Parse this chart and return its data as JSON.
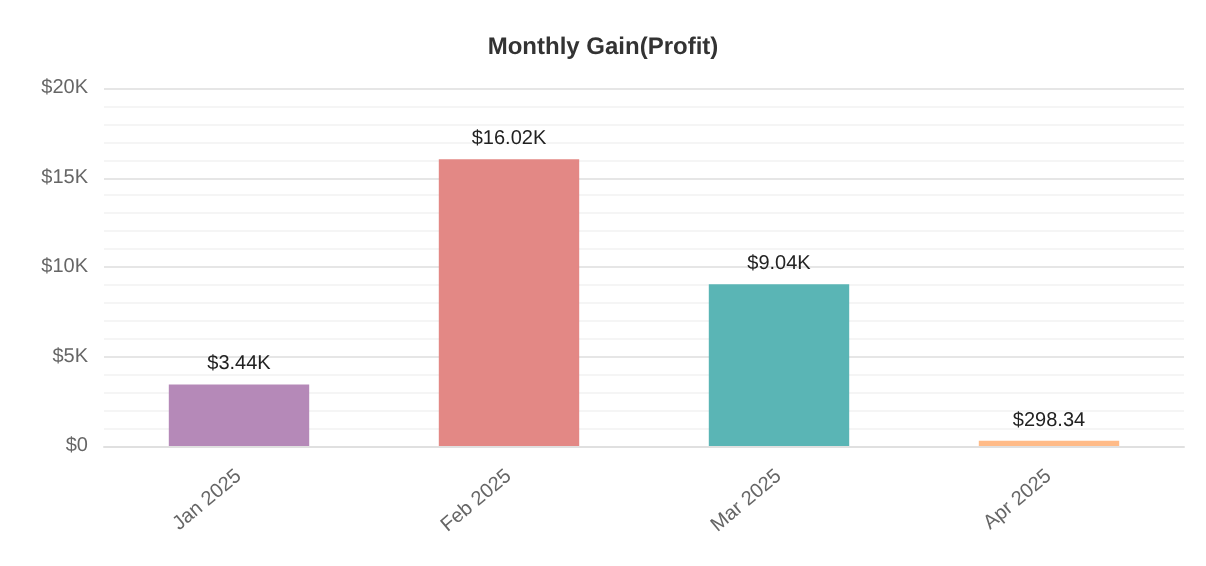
{
  "chart_data": {
    "type": "bar",
    "title": "Monthly Gain(Profit)",
    "categories": [
      "Jan 2025",
      "Feb 2025",
      "Mar 2025",
      "Apr 2025"
    ],
    "values": [
      3440,
      16020,
      9040,
      298.34
    ],
    "colors": [
      "#b589b8",
      "#e38885",
      "#5ab5b5",
      "#ffbb88"
    ],
    "value_labels": [
      "$3.44K",
      "$16.02K",
      "$9.04K",
      "$298.34"
    ],
    "ylim": [
      0,
      20000
    ],
    "yticks": [
      {
        "value": 0,
        "label": "$0"
      },
      {
        "value": 5000,
        "label": "$5K"
      },
      {
        "value": 10000,
        "label": "$10K"
      },
      {
        "value": 15000,
        "label": "$15K"
      },
      {
        "value": 20000,
        "label": "$20K"
      }
    ],
    "grid": true
  }
}
